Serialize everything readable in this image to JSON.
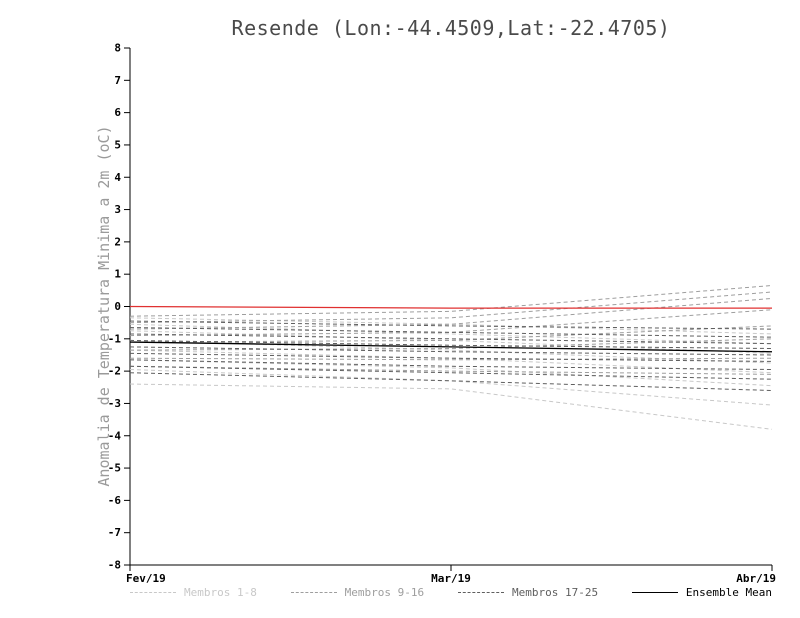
{
  "title": "Resende (Lon:-44.4509,Lat:-22.4705)",
  "chart_data": {
    "type": "line",
    "title": "Resende (Lon:-44.4509,Lat:-22.4705)",
    "ylabel": "Anomalia de Temperatura Minima a 2m (oC)",
    "xlabel": "",
    "x": [
      "Fev/19",
      "Mar/19",
      "Abr/19"
    ],
    "ylim": [
      -8,
      8
    ],
    "ytick_step": 1,
    "grid": false,
    "legend_position": "bottom",
    "axis_color": "#000000",
    "groups": [
      {
        "name": "Membros 1-8",
        "color": "#c8c8c8",
        "style": "dashed",
        "members": [
          [
            -0.35,
            -0.55,
            -0.85
          ],
          [
            -0.55,
            -0.85,
            -1.15
          ],
          [
            -0.75,
            -1.05,
            -1.45
          ],
          [
            -1.05,
            -1.35,
            -1.75
          ],
          [
            -1.35,
            -1.6,
            -2.05
          ],
          [
            -1.65,
            -1.9,
            -2.45
          ],
          [
            -1.95,
            -2.3,
            -3.05
          ],
          [
            -2.4,
            -2.55,
            -3.8
          ]
        ]
      },
      {
        "name": "Membros 9-16",
        "color": "#9e9e9e",
        "style": "dashed",
        "members": [
          [
            -0.3,
            -0.15,
            0.65
          ],
          [
            -0.5,
            -0.35,
            0.45
          ],
          [
            -0.7,
            -0.55,
            0.25
          ],
          [
            -0.9,
            -0.8,
            -0.1
          ],
          [
            -1.1,
            -1.05,
            -0.6
          ],
          [
            -1.35,
            -1.3,
            -1.0
          ],
          [
            -1.6,
            -1.65,
            -1.6
          ],
          [
            -1.85,
            -2.0,
            -2.1
          ]
        ]
      },
      {
        "name": "Membros 17-25",
        "color": "#5f5f5f",
        "style": "dashed",
        "members": [
          [
            -0.45,
            -0.6,
            -0.7
          ],
          [
            -0.65,
            -0.8,
            -0.95
          ],
          [
            -0.85,
            -1.0,
            -1.15
          ],
          [
            -1.05,
            -1.2,
            -1.3
          ],
          [
            -1.25,
            -1.4,
            -1.5
          ],
          [
            -1.45,
            -1.6,
            -1.7
          ],
          [
            -1.65,
            -1.85,
            -1.95
          ],
          [
            -1.85,
            -2.05,
            -2.25
          ],
          [
            -2.05,
            -2.3,
            -2.6
          ]
        ]
      },
      {
        "name": "Ensemble Mean",
        "color": "#000000",
        "style": "solid",
        "members": [
          [
            -1.1,
            -1.25,
            -1.4
          ]
        ]
      }
    ],
    "reference_line": {
      "name": "zero-reference",
      "color": "#e03030",
      "style": "solid",
      "values": [
        0.0,
        -0.05,
        -0.05
      ]
    }
  }
}
